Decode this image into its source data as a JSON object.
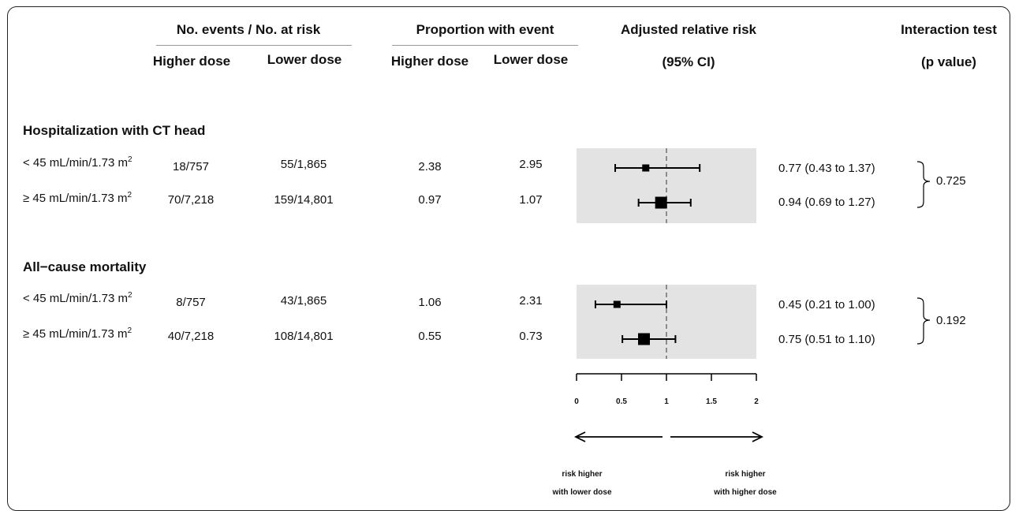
{
  "chart_data": {
    "type": "forest",
    "columns": {
      "events_at_risk": "No. events / No. at risk",
      "proportion": "Proportion with event",
      "higher_dose": "Higher dose",
      "lower_dose": "Lower dose",
      "rr_line1": "Adjusted relative risk",
      "rr_line2": "(95% CI)",
      "int_line1": "Interaction test",
      "int_line2": "(p value)"
    },
    "sections": [
      {
        "title": "Hospitalization with CT head",
        "interaction_p": "0.725",
        "rows": [
          {
            "label": "< 45 mL/min/1.73 m",
            "sup": "2",
            "events_higher": "18/757",
            "events_lower": "55/1,865",
            "prop_higher": "2.38",
            "prop_lower": "2.95",
            "rr": 0.77,
            "lo": 0.43,
            "hi": 1.37,
            "rr_text": "0.77 (0.43 to 1.37)",
            "weight": "small"
          },
          {
            "label": "≥ 45 mL/min/1.73 m",
            "sup": "2",
            "events_higher": "70/7,218",
            "events_lower": "159/14,801",
            "prop_higher": "0.97",
            "prop_lower": "1.07",
            "rr": 0.94,
            "lo": 0.69,
            "hi": 1.27,
            "rr_text": "0.94 (0.69 to 1.27)",
            "weight": "large"
          }
        ]
      },
      {
        "title": "All−cause mortality",
        "interaction_p": "0.192",
        "rows": [
          {
            "label": "< 45 mL/min/1.73 m",
            "sup": "2",
            "events_higher": "8/757",
            "events_lower": "43/1,865",
            "prop_higher": "1.06",
            "prop_lower": "2.31",
            "rr": 0.45,
            "lo": 0.21,
            "hi": 1.0,
            "rr_text": "0.45 (0.21 to 1.00)",
            "weight": "small"
          },
          {
            "label": "≥ 45 mL/min/1.73 m",
            "sup": "2",
            "events_higher": "40/7,218",
            "events_lower": "108/14,801",
            "prop_higher": "0.55",
            "prop_lower": "0.73",
            "rr": 0.75,
            "lo": 0.51,
            "hi": 1.1,
            "rr_text": "0.75 (0.51 to 1.10)",
            "weight": "large"
          }
        ]
      }
    ],
    "x_axis": {
      "range": [
        0,
        2
      ],
      "ticks": [
        0,
        0.5,
        1,
        1.5,
        2
      ],
      "tick_labels": [
        "0",
        "0.5",
        "1",
        "1.5",
        "2"
      ],
      "reference": 1
    },
    "direction_labels": {
      "left_line1": "risk higher",
      "left_line2": "with lower dose",
      "right_line1": "risk higher",
      "right_line2": "with higher dose"
    },
    "colors": {
      "panel_background": "#e3e3e3",
      "marker": "#000000",
      "reference_line": "#8c8c8c"
    }
  }
}
